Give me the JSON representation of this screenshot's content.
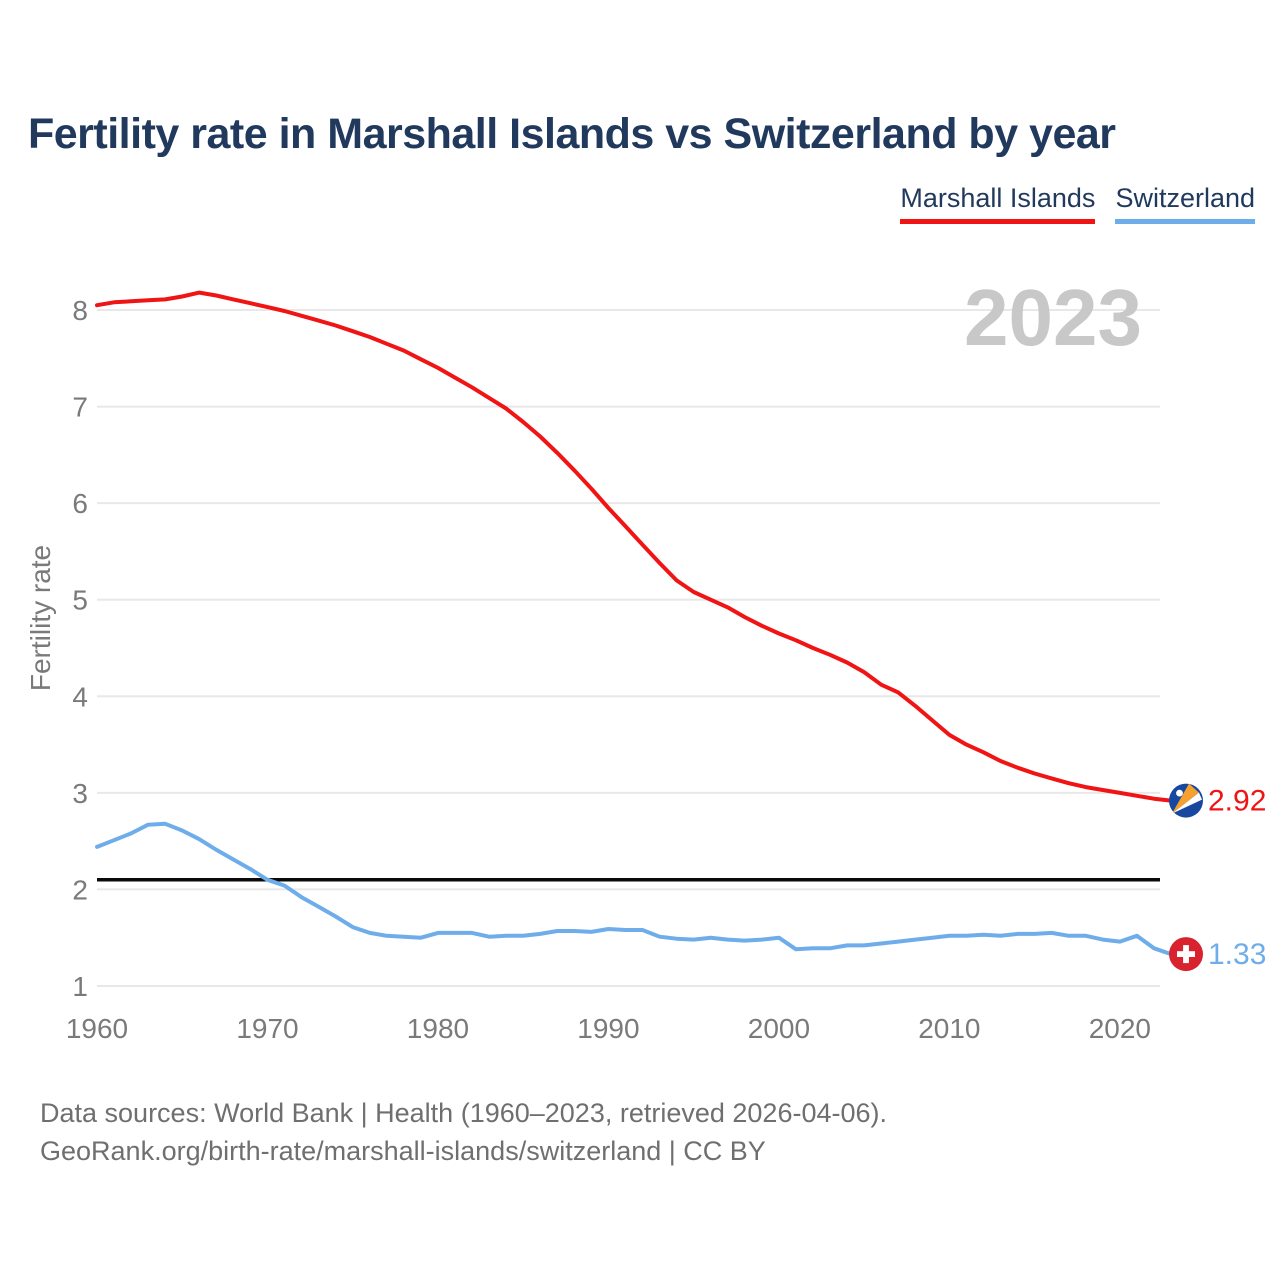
{
  "page": {
    "title": "Fertility rate in Marshall Islands vs Switzerland by year",
    "watermark": "2023",
    "footer_line1": "Data sources: World Bank | Health (1960–2023, retrieved 2026-04-06).",
    "footer_line2": "GeoRank.org/birth-rate/marshall-islands/switzerland | CC BY"
  },
  "legend": {
    "items": [
      {
        "label": "Marshall Islands",
        "color": "#f01414"
      },
      {
        "label": "Switzerland",
        "color": "#6fadea"
      }
    ]
  },
  "colors": {
    "background": "#ffffff",
    "title_text": "#20395c",
    "axis_text": "#7a7a7a",
    "gridline": "#e8e8e8",
    "watermark": "#c8c8c8",
    "footer_text": "#6f6f6f",
    "reference_line": "#0a0a0a",
    "marshall_red": "#f01414",
    "swiss_blue": "#6fadea",
    "marshall_flag_blue": "#17489f",
    "marshall_flag_orange": "#f5a030",
    "swiss_flag_red": "#d8232f"
  },
  "chart_data": {
    "type": "line",
    "title": "Fertility rate in Marshall Islands vs Switzerland by year",
    "xlabel": "",
    "ylabel": "Fertility rate",
    "x_start": 1960,
    "x_end": 2023,
    "xticks": [
      1960,
      1970,
      1980,
      1990,
      2000,
      2010,
      2020
    ],
    "yticks": [
      1,
      2,
      3,
      4,
      5,
      6,
      7,
      8
    ],
    "ylim": [
      0.8,
      8.5
    ],
    "grid": "horizontal",
    "legend_position": "top-right",
    "watermark": "2023",
    "reference_line": 2.1,
    "series": [
      {
        "name": "Marshall Islands",
        "color": "#f01414",
        "end_label": "2.92",
        "flag": "marshall-islands",
        "values": [
          8.05,
          8.08,
          8.09,
          8.1,
          8.11,
          8.14,
          8.18,
          8.15,
          8.11,
          8.07,
          8.03,
          7.99,
          7.94,
          7.89,
          7.84,
          7.78,
          7.72,
          7.65,
          7.58,
          7.49,
          7.4,
          7.3,
          7.2,
          7.09,
          6.98,
          6.84,
          6.69,
          6.52,
          6.34,
          6.15,
          5.95,
          5.76,
          5.57,
          5.38,
          5.2,
          5.08,
          5.0,
          4.92,
          4.82,
          4.73,
          4.65,
          4.58,
          4.5,
          4.43,
          4.35,
          4.25,
          4.12,
          4.04,
          3.9,
          3.75,
          3.6,
          3.5,
          3.42,
          3.33,
          3.26,
          3.2,
          3.15,
          3.1,
          3.06,
          3.03,
          3.0,
          2.97,
          2.94,
          2.92
        ]
      },
      {
        "name": "Switzerland",
        "color": "#6fadea",
        "end_label": "1.33",
        "flag": "switzerland",
        "values": [
          2.44,
          2.51,
          2.58,
          2.67,
          2.68,
          2.61,
          2.52,
          2.41,
          2.31,
          2.21,
          2.1,
          2.04,
          1.92,
          1.82,
          1.72,
          1.61,
          1.55,
          1.52,
          1.51,
          1.5,
          1.55,
          1.55,
          1.55,
          1.51,
          1.52,
          1.52,
          1.54,
          1.57,
          1.57,
          1.56,
          1.59,
          1.58,
          1.58,
          1.51,
          1.49,
          1.48,
          1.5,
          1.48,
          1.47,
          1.48,
          1.5,
          1.38,
          1.39,
          1.39,
          1.42,
          1.42,
          1.44,
          1.46,
          1.48,
          1.5,
          1.52,
          1.52,
          1.53,
          1.52,
          1.54,
          1.54,
          1.55,
          1.52,
          1.52,
          1.48,
          1.46,
          1.52,
          1.39,
          1.33
        ]
      }
    ]
  }
}
